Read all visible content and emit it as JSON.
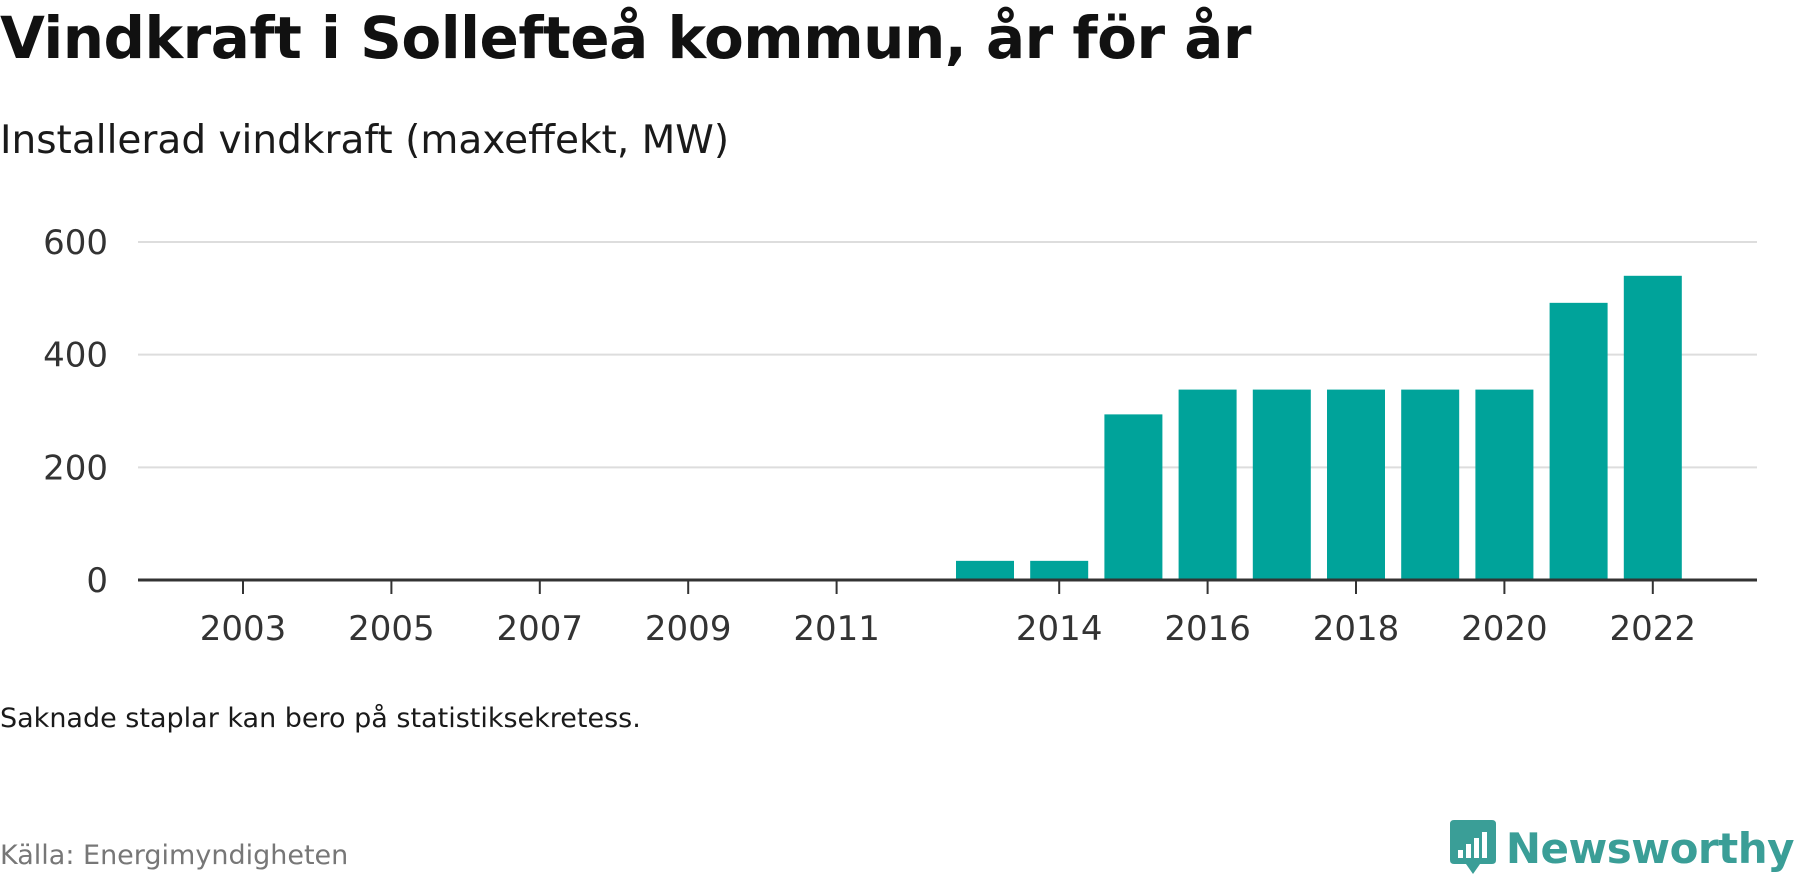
{
  "header": {
    "title": "Vindkraft i Sollefteå kommun, år för år",
    "subtitle": "Installerad vindkraft (maxeffekt, MW)"
  },
  "footer": {
    "note": "Saknade staplar kan bero på statistiksekretess.",
    "source": "Källa: Energimyndigheten",
    "brand": "Newsworthy",
    "brand_icon": "newsworthy-logo-icon"
  },
  "colors": {
    "bar": "#00a39a",
    "grid": "#dddddd",
    "axis": "#333333",
    "brand": "#3a9e97"
  },
  "chart_data": {
    "type": "bar",
    "categories": [
      "2003",
      "2004",
      "2005",
      "2006",
      "2007",
      "2008",
      "2009",
      "2010",
      "2011",
      "2012",
      "2013",
      "2014",
      "2015",
      "2016",
      "2017",
      "2018",
      "2019",
      "2020",
      "2021",
      "2022"
    ],
    "values": [
      0,
      0,
      0,
      0,
      0,
      0,
      0,
      0,
      0,
      0,
      34,
      34,
      294,
      338,
      338,
      338,
      338,
      338,
      492,
      540
    ],
    "x_tick_labels": [
      "2003",
      "2005",
      "2007",
      "2009",
      "2011",
      "2014",
      "2016",
      "2018",
      "2020",
      "2022"
    ],
    "y_ticks": [
      0,
      200,
      400,
      600
    ],
    "ylim": [
      0,
      600
    ],
    "title": "Vindkraft i Sollefteå kommun, år för år",
    "subtitle": "Installerad vindkraft (maxeffekt, MW)",
    "xlabel": "",
    "ylabel": "",
    "grid": true,
    "legend": false
  }
}
